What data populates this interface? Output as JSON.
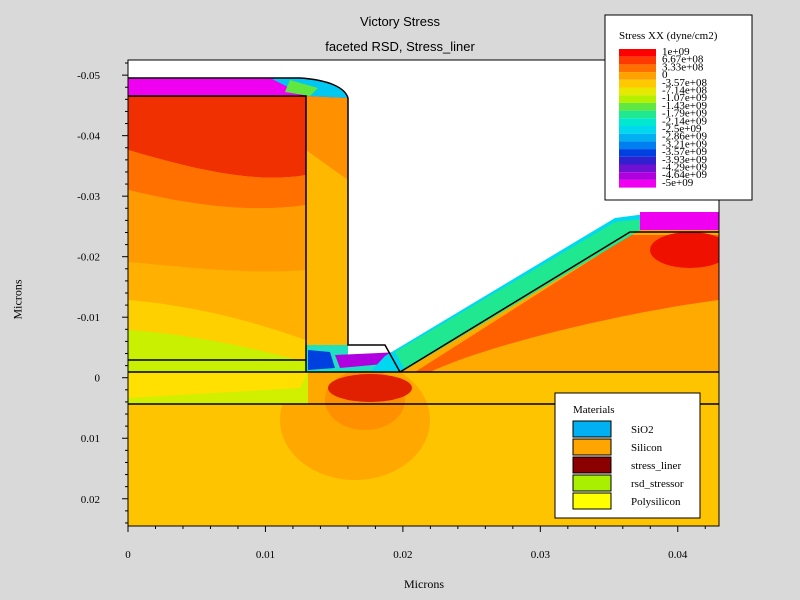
{
  "chart_data": {
    "type": "heatmap",
    "title": "Victory Stress",
    "subtitle": "faceted RSD, Stress_liner",
    "xlabel": "Microns",
    "ylabel": "Microns",
    "xlim": [
      0,
      0.043
    ],
    "ylim": [
      -0.0525,
      0.0245
    ],
    "y_inverted": true,
    "x_ticks": [
      "0",
      "0.01",
      "0.02",
      "0.03",
      "0.04"
    ],
    "x_tick_values": [
      0,
      0.01,
      0.02,
      0.03,
      0.04
    ],
    "y_ticks": [
      "-0.05",
      "-0.04",
      "-0.03",
      "-0.02",
      "-0.01",
      "0",
      "0.01",
      "0.02"
    ],
    "y_tick_values": [
      -0.05,
      -0.04,
      -0.03,
      -0.02,
      -0.01,
      0,
      0.01,
      0.02
    ],
    "stress_legend": {
      "title": "Stress XX (dyne/cm2)",
      "entries": [
        {
          "label": "1e+09",
          "color": "#ff0000"
        },
        {
          "label": "6.67e+08",
          "color": "#ff3a00"
        },
        {
          "label": "3.33e+08",
          "color": "#ff7000"
        },
        {
          "label": "0",
          "color": "#ffa200"
        },
        {
          "label": "-3.57e+08",
          "color": "#ffc800"
        },
        {
          "label": "-7.14e+08",
          "color": "#e8e800"
        },
        {
          "label": "-1.07e+09",
          "color": "#b4f000"
        },
        {
          "label": "-1.43e+09",
          "color": "#60e840"
        },
        {
          "label": "-1.79e+09",
          "color": "#20e890"
        },
        {
          "label": "-2.14e+09",
          "color": "#00e8d0"
        },
        {
          "label": "-2.5e+09",
          "color": "#00d8f0"
        },
        {
          "label": "-2.86e+09",
          "color": "#00b0f0"
        },
        {
          "label": "-3.21e+09",
          "color": "#0080f0"
        },
        {
          "label": "-3.57e+09",
          "color": "#0040e0"
        },
        {
          "label": "-3.93e+09",
          "color": "#3020d0"
        },
        {
          "label": "-4.29e+09",
          "color": "#7010d0"
        },
        {
          "label": "-4.64e+09",
          "color": "#b000e0"
        },
        {
          "label": "-5e+09",
          "color": "#f000f0"
        }
      ]
    },
    "materials_legend": {
      "title": "Materials",
      "entries": [
        {
          "label": "SiO2",
          "color": "#00b0f0"
        },
        {
          "label": "Silicon",
          "color": "#ffa500"
        },
        {
          "label": "stress_liner",
          "color": "#8b0000"
        },
        {
          "label": "rsd_stressor",
          "color": "#a8f000"
        },
        {
          "label": "Polysilicon",
          "color": "#ffff00"
        }
      ]
    }
  }
}
